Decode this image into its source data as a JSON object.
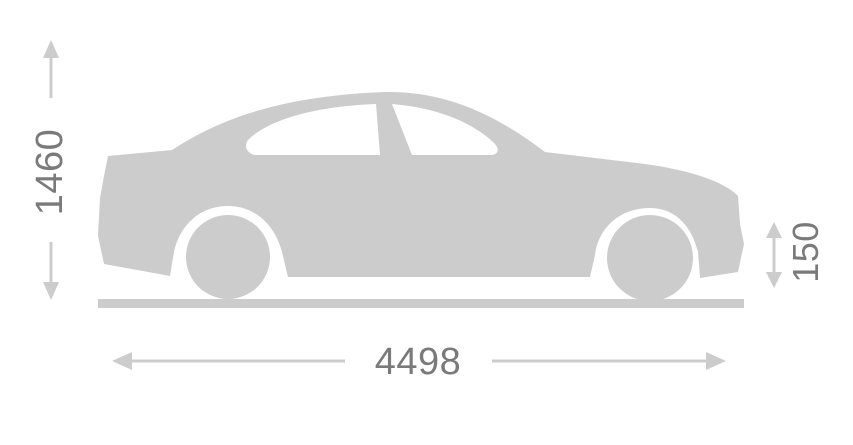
{
  "dimensions": {
    "height_value": "1460",
    "length_value": "4498",
    "ground_clearance_value": "150"
  },
  "colors": {
    "car_fill": "#cccccc",
    "ground_line": "#cccccc",
    "arrow": "#cccccc",
    "label_text": "#7a7a7a",
    "window": "#ffffff",
    "background": "#ffffff"
  },
  "icons": {
    "vehicle": "sedan-side-silhouette-icon"
  }
}
